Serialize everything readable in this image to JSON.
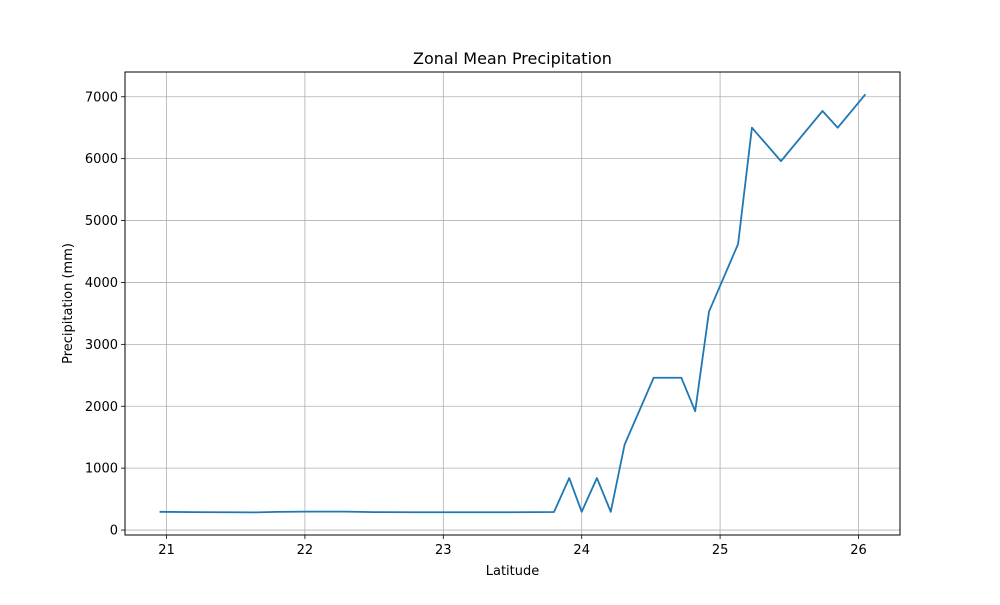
{
  "chart_data": {
    "type": "line",
    "title": "Zonal Mean Precipitation",
    "xlabel": "Latitude",
    "ylabel": "Precipitation (mm)",
    "xlim": [
      20.7,
      26.3
    ],
    "ylim": [
      -80,
      7400
    ],
    "xticks": [
      21,
      22,
      23,
      24,
      25,
      26
    ],
    "yticks": [
      0,
      1000,
      2000,
      3000,
      4000,
      5000,
      6000,
      7000
    ],
    "grid": true,
    "series": [
      {
        "color": "#1f77b4",
        "x": [
          20.95,
          21.2,
          21.4,
          21.65,
          21.8,
          22.0,
          22.3,
          22.5,
          22.8,
          23.0,
          23.3,
          23.5,
          23.8,
          23.91,
          24.0,
          24.11,
          24.21,
          24.31,
          24.52,
          24.72,
          24.82,
          24.92,
          25.13,
          25.23,
          25.44,
          25.74,
          25.85,
          26.05
        ],
        "y": [
          295,
          290,
          288,
          285,
          293,
          298,
          297,
          290,
          288,
          288,
          287,
          288,
          292,
          840,
          295,
          840,
          295,
          1380,
          2460,
          2460,
          1920,
          3530,
          4620,
          6500,
          5960,
          6770,
          6500,
          7040
        ]
      }
    ]
  }
}
